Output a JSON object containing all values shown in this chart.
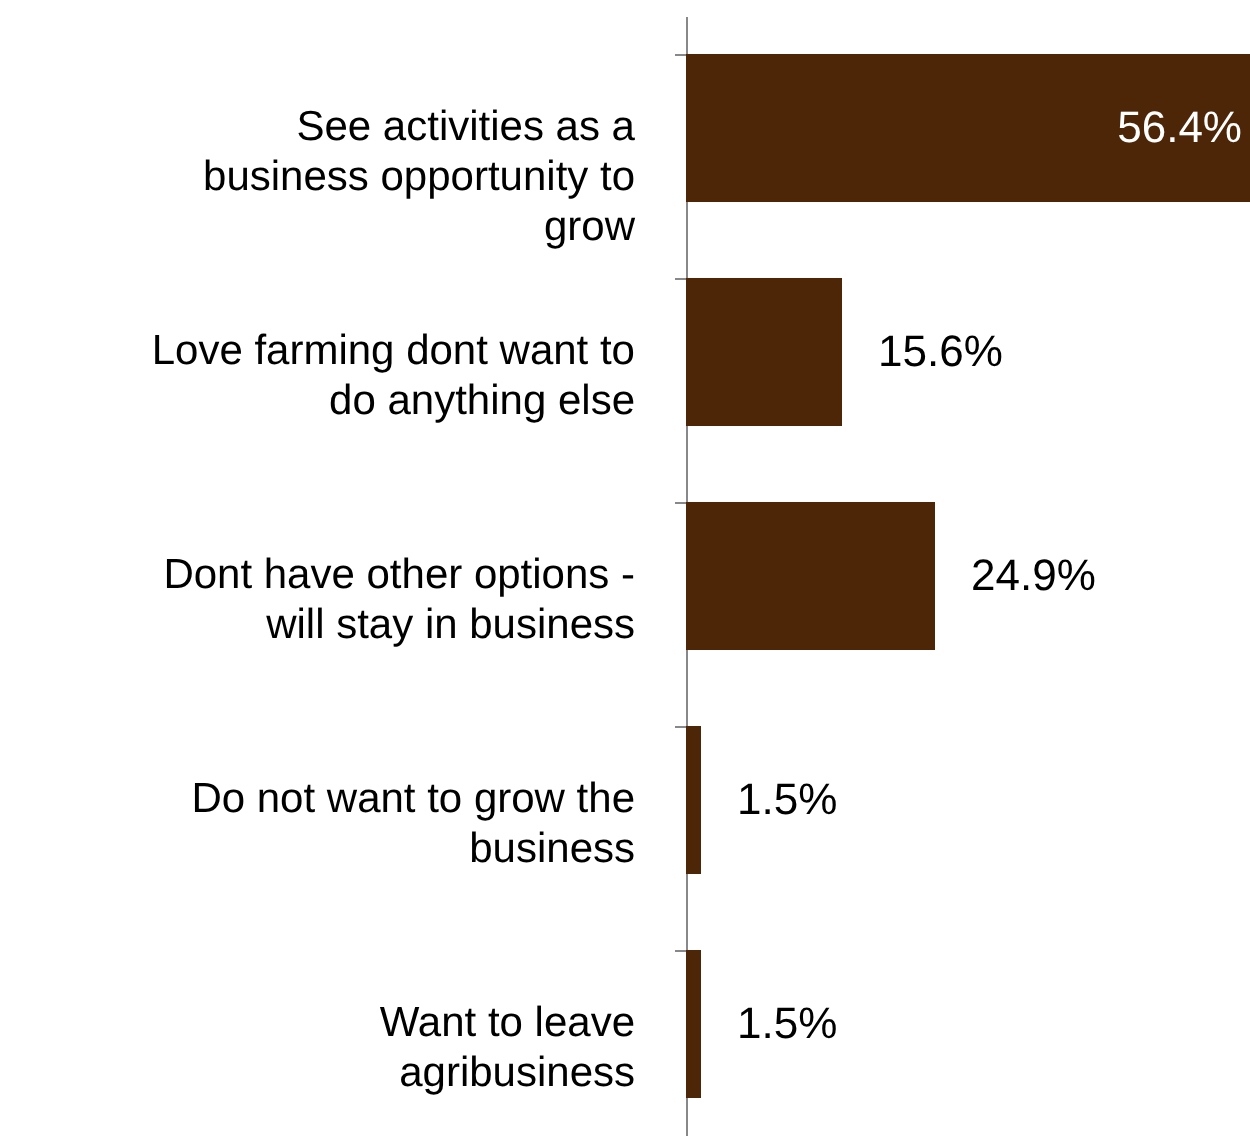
{
  "chart_data": {
    "type": "bar",
    "orientation": "horizontal",
    "categories": [
      "See activities as a business opportunity to grow",
      "Love farming dont want to do anything else",
      "Dont have other options - will stay in business",
      "Do not want to grow the business",
      "Want to leave agribusiness"
    ],
    "values": [
      56.4,
      15.6,
      24.9,
      1.5,
      1.5
    ],
    "value_labels": [
      "56.4%",
      "15.6%",
      "24.9%",
      "1.5%",
      "1.5%"
    ],
    "color": "#4d2608"
  }
}
